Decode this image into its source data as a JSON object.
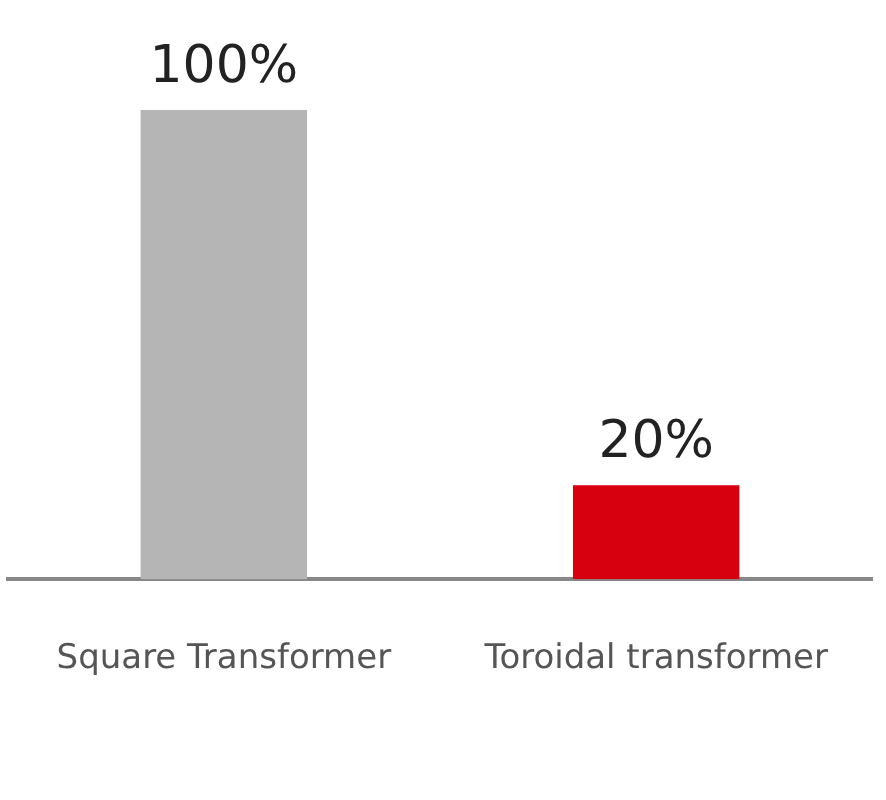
{
  "chart_data": {
    "type": "bar",
    "categories": [
      "Square Transformer",
      "Toroidal transformer"
    ],
    "values": [
      100,
      20
    ],
    "colors": [
      "#b5b5b5",
      "#d7000f"
    ],
    "value_labels": [
      "100%",
      "20%"
    ],
    "grid": false,
    "legend": false
  }
}
